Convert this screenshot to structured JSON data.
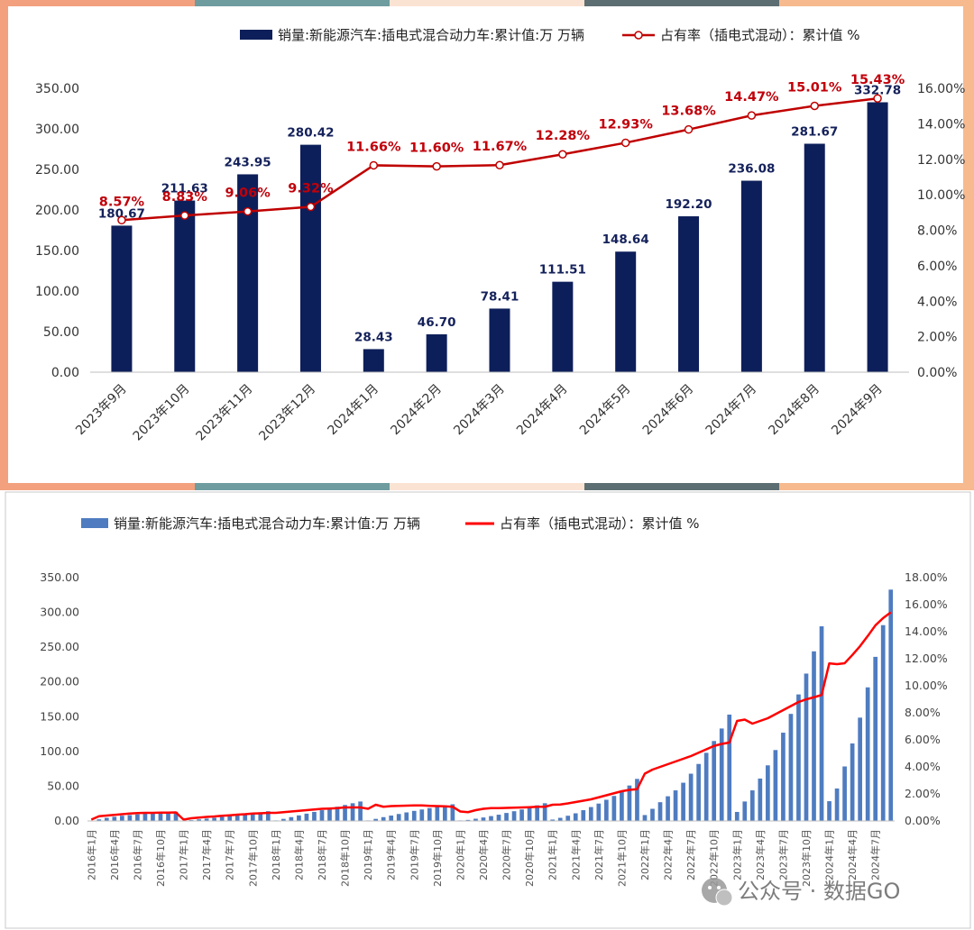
{
  "colors": {
    "bar_dark": "#0d1f5a",
    "line_red": "#c00000",
    "bar_blue": "#4f7cc0",
    "line_bright_red": "#ff0000",
    "frame_left": "#f3a07e",
    "frame_right": "#f7b98e",
    "frame_top_segments": [
      "#f3a07e",
      "#6e9c9f",
      "#fbe3d3",
      "#5d6e72",
      "#f7b98e"
    ]
  },
  "watermark": {
    "icon": "wechat-icon",
    "text": "公众号 · 数据GO"
  },
  "chart_data": [
    {
      "type": "bar+line",
      "legend": {
        "bar": "销量:新能源汽车:插电式混合动力车:累计值:万 万辆",
        "line": "占有率（插电式混动）：累计值 %"
      },
      "categories": [
        "2023年9月",
        "2023年10月",
        "2023年11月",
        "2023年12月",
        "2024年1月",
        "2024年2月",
        "2024年3月",
        "2024年4月",
        "2024年5月",
        "2024年6月",
        "2024年7月",
        "2024年8月",
        "2024年9月"
      ],
      "bar_values": [
        180.67,
        211.63,
        243.95,
        280.42,
        28.43,
        46.7,
        78.41,
        111.51,
        148.64,
        192.2,
        236.08,
        281.67,
        332.78
      ],
      "bar_labels": [
        "180.67",
        "211.63",
        "243.95",
        "280.42",
        "28.43",
        "46.70",
        "78.41",
        "111.51",
        "148.64",
        "192.20",
        "236.08",
        "281.67",
        "332.78"
      ],
      "line_values": [
        8.57,
        8.83,
        9.06,
        9.32,
        11.66,
        11.6,
        11.67,
        12.28,
        12.93,
        13.68,
        14.47,
        15.01,
        15.43
      ],
      "line_labels": [
        "8.57%",
        "8.83%",
        "9.06%",
        "9.32%",
        "11.66%",
        "11.60%",
        "11.67%",
        "12.28%",
        "12.93%",
        "13.68%",
        "14.47%",
        "15.01%",
        "15.43%"
      ],
      "y_left": {
        "min": 0,
        "max": 350,
        "ticks": [
          "0.00",
          "50.00",
          "100.00",
          "150.00",
          "200.00",
          "250.00",
          "300.00",
          "350.00"
        ]
      },
      "y_right": {
        "min": 0,
        "max": 16,
        "ticks": [
          "0.00%",
          "2.00%",
          "4.00%",
          "6.00%",
          "8.00%",
          "10.00%",
          "12.00%",
          "14.00%",
          "16.00%"
        ]
      }
    },
    {
      "type": "bar+line",
      "legend": {
        "bar": "销量:新能源汽车:插电式混合动力车:累计值:万 万辆",
        "line": "占有率（插电式混动）：累计值 %"
      },
      "start": "2016年1月",
      "months": 105,
      "x_tick_labels": [
        "2016年1月",
        "2016年4月",
        "2016年7月",
        "2016年10月",
        "2017年1月",
        "2017年4月",
        "2017年7月",
        "2017年10月",
        "2018年1月",
        "2018年4月",
        "2018年7月",
        "2018年10月",
        "2019年1月",
        "2019年4月",
        "2019年7月",
        "2019年10月",
        "2020年1月",
        "2020年4月",
        "2020年7月",
        "2020年10月",
        "2021年1月",
        "2021年4月",
        "2021年7月",
        "2021年10月",
        "2022年1月",
        "2022年4月",
        "2022年7月",
        "2022年10月",
        "2023年1月",
        "2023年4月",
        "2023年7月",
        "2023年10月",
        "2024年1月",
        "2024年4月",
        "2024年7月"
      ],
      "bar_values": [
        0.5,
        2.3,
        4.5,
        6.0,
        7.5,
        8.5,
        9.5,
        10.5,
        11.5,
        12.0,
        12.5,
        13.2,
        0.3,
        1.2,
        2.3,
        3.4,
        4.6,
        5.8,
        7.0,
        8.3,
        9.7,
        11.0,
        12.5,
        14.0,
        0.8,
        3.0,
        5.5,
        8.0,
        10.5,
        13.0,
        15.5,
        18.0,
        20.5,
        23.0,
        25.5,
        28.0,
        0.8,
        3.0,
        5.5,
        7.8,
        10.0,
        12.3,
        14.5,
        16.5,
        18.5,
        20.3,
        22.2,
        24.0,
        0.8,
        1.5,
        3.2,
        5.0,
        7.0,
        9.0,
        11.5,
        14.0,
        16.5,
        19.5,
        22.5,
        25.5,
        2.0,
        4.5,
        7.5,
        11.0,
        15.5,
        20.0,
        25.0,
        30.5,
        36.0,
        42.5,
        51.0,
        60.5,
        8.5,
        17.5,
        27.0,
        35.5,
        44.0,
        55.0,
        68.0,
        82.0,
        98.0,
        115.0,
        133.0,
        153.0,
        13.0,
        28.0,
        44.0,
        61.0,
        80.0,
        102.0,
        127.0,
        154.0,
        182.0,
        212.0,
        244.0,
        280.0,
        28.43,
        46.7,
        78.41,
        111.51,
        148.64,
        192.2,
        236.08,
        281.67,
        332.78
      ],
      "line_values": [
        0.1,
        0.35,
        0.4,
        0.45,
        0.5,
        0.55,
        0.58,
        0.6,
        0.6,
        0.62,
        0.62,
        0.63,
        0.1,
        0.2,
        0.25,
        0.3,
        0.33,
        0.38,
        0.42,
        0.47,
        0.5,
        0.55,
        0.57,
        0.6,
        0.6,
        0.65,
        0.7,
        0.75,
        0.8,
        0.85,
        0.9,
        0.92,
        0.95,
        1.0,
        1.0,
        1.0,
        0.9,
        1.2,
        1.05,
        1.1,
        1.12,
        1.13,
        1.15,
        1.15,
        1.12,
        1.1,
        1.08,
        1.05,
        0.7,
        0.65,
        0.8,
        0.9,
        0.95,
        0.95,
        0.97,
        0.98,
        1.0,
        1.02,
        1.05,
        1.05,
        1.2,
        1.22,
        1.3,
        1.4,
        1.5,
        1.6,
        1.75,
        1.9,
        2.05,
        2.2,
        2.3,
        2.35,
        3.5,
        3.8,
        4.0,
        4.2,
        4.4,
        4.6,
        4.8,
        5.05,
        5.3,
        5.55,
        5.7,
        5.8,
        7.4,
        7.5,
        7.2,
        7.4,
        7.6,
        7.9,
        8.2,
        8.5,
        8.8,
        9.0,
        9.15,
        9.32,
        11.66,
        11.6,
        11.67,
        12.28,
        12.93,
        13.68,
        14.47,
        15.01,
        15.43
      ],
      "y_left": {
        "min": 0,
        "max": 350,
        "ticks": [
          "0.00",
          "50.00",
          "100.00",
          "150.00",
          "200.00",
          "250.00",
          "300.00",
          "350.00"
        ]
      },
      "y_right": {
        "min": 0,
        "max": 18,
        "ticks": [
          "0.00%",
          "2.00%",
          "4.00%",
          "6.00%",
          "8.00%",
          "10.00%",
          "12.00%",
          "14.00%",
          "16.00%",
          "18.00%"
        ]
      }
    }
  ]
}
